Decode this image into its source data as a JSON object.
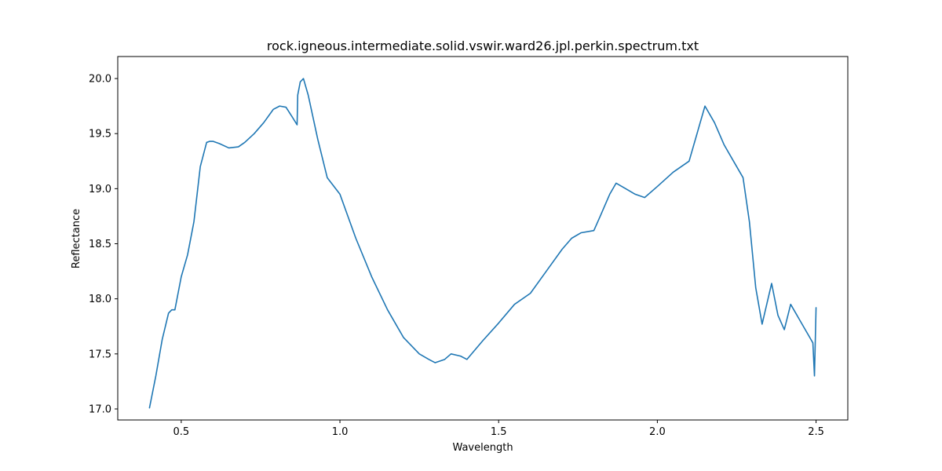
{
  "chart_data": {
    "type": "line",
    "title": "rock.igneous.intermediate.solid.vswir.ward26.jpl.perkin.spectrum.txt",
    "xlabel": "Wavelength",
    "ylabel": "Reflectance",
    "xlim": [
      0.3,
      2.6
    ],
    "ylim": [
      16.9,
      20.2
    ],
    "xticks": [
      "0.5",
      "1.0",
      "1.5",
      "2.0",
      "2.5"
    ],
    "yticks": [
      "17.0",
      "17.5",
      "18.0",
      "18.5",
      "19.0",
      "19.5",
      "20.0"
    ],
    "grid": false,
    "line_color": "#1f77b4",
    "series": [
      {
        "x": [
          0.4,
          0.42,
          0.44,
          0.46,
          0.47,
          0.48,
          0.5,
          0.52,
          0.54,
          0.55,
          0.56,
          0.58,
          0.59,
          0.6,
          0.62,
          0.65,
          0.68,
          0.7,
          0.73,
          0.76,
          0.79,
          0.81,
          0.83,
          0.85,
          0.865,
          0.867,
          0.875,
          0.885,
          0.9,
          0.93,
          0.96,
          1.0,
          1.05,
          1.1,
          1.15,
          1.2,
          1.25,
          1.28,
          1.3,
          1.33,
          1.35,
          1.38,
          1.4,
          1.45,
          1.5,
          1.55,
          1.6,
          1.65,
          1.7,
          1.73,
          1.76,
          1.8,
          1.82,
          1.85,
          1.87,
          1.9,
          1.93,
          1.96,
          2.0,
          2.05,
          2.1,
          2.13,
          2.15,
          2.18,
          2.21,
          2.24,
          2.27,
          2.29,
          2.31,
          2.33,
          2.36,
          2.38,
          2.4,
          2.42,
          2.44,
          2.46,
          2.48,
          2.49,
          2.495,
          2.5
        ],
        "y": [
          17.01,
          17.3,
          17.63,
          17.87,
          17.9,
          17.9,
          18.2,
          18.4,
          18.7,
          18.95,
          19.2,
          19.42,
          19.43,
          19.43,
          19.41,
          19.37,
          19.38,
          19.42,
          19.5,
          19.6,
          19.72,
          19.75,
          19.74,
          19.65,
          19.58,
          19.85,
          19.97,
          20.0,
          19.85,
          19.45,
          19.1,
          18.95,
          18.55,
          18.2,
          17.9,
          17.65,
          17.5,
          17.45,
          17.42,
          17.45,
          17.5,
          17.48,
          17.45,
          17.62,
          17.78,
          17.95,
          18.05,
          18.25,
          18.45,
          18.55,
          18.6,
          18.62,
          18.75,
          18.95,
          19.05,
          19.0,
          18.95,
          18.92,
          19.02,
          19.15,
          19.25,
          19.55,
          19.75,
          19.6,
          19.4,
          19.25,
          19.1,
          18.7,
          18.1,
          17.77,
          18.14,
          17.85,
          17.72,
          17.95,
          17.85,
          17.75,
          17.65,
          17.6,
          17.3,
          17.92
        ]
      }
    ]
  }
}
